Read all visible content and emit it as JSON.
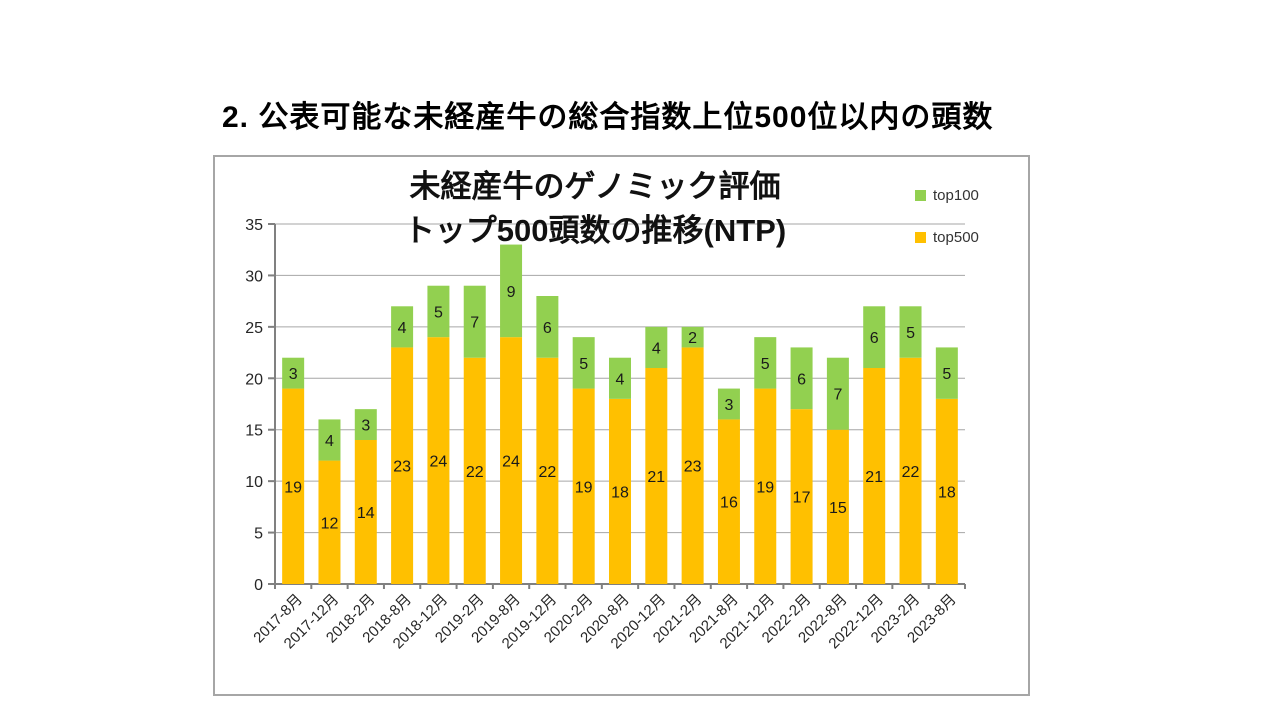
{
  "page": {
    "title": "2. 公表可能な未経産牛の総合指数上位500位以内の頭数"
  },
  "chart": {
    "title_line1": "未経産牛のゲノミック評価",
    "title_line2": "トップ500頭数の推移(NTP)"
  },
  "chart_data": {
    "type": "bar",
    "stacked": true,
    "title": "未経産牛のゲノミック評価 トップ500頭数の推移(NTP)",
    "categories": [
      "2017-8月",
      "2017-12月",
      "2018-2月",
      "2018-8月",
      "2018-12月",
      "2019-2月",
      "2019-8月",
      "2019-12月",
      "2020-2月",
      "2020-8月",
      "2020-12月",
      "2021-2月",
      "2021-8月",
      "2021-12月",
      "2022-2月",
      "2022-8月",
      "2022-12月",
      "2023-2月",
      "2023-8月"
    ],
    "series": [
      {
        "name": "top500",
        "color": "#FFC000",
        "values": [
          19,
          12,
          14,
          23,
          24,
          22,
          24,
          22,
          19,
          18,
          21,
          23,
          16,
          19,
          17,
          15,
          21,
          22,
          18
        ]
      },
      {
        "name": "top100",
        "color": "#92D050",
        "values": [
          3,
          4,
          3,
          4,
          5,
          7,
          9,
          6,
          5,
          4,
          4,
          2,
          3,
          5,
          6,
          7,
          6,
          5,
          5
        ]
      }
    ],
    "ylim": [
      0,
      35
    ],
    "ytick_interval": 5,
    "grid": true,
    "legend_position": "top-right",
    "xlabel": "",
    "ylabel": ""
  },
  "colors": {
    "gridline": "#a6a6a6",
    "axis": "#808080",
    "label_text": "#1a1a1a",
    "tick_text": "#262626",
    "border": "#a6a6a6"
  }
}
